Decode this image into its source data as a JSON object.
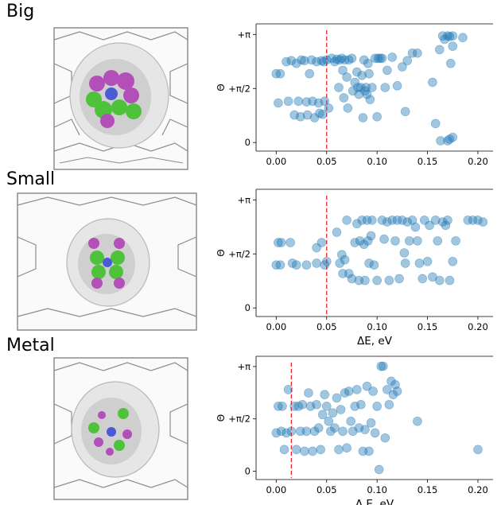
{
  "panels": [
    {
      "label": "Big"
    },
    {
      "label": "Small"
    },
    {
      "label": "Metal"
    }
  ],
  "colors": {
    "point": "#1f77b4",
    "threshold": "#e8262b",
    "tube": "#8c8c8c",
    "shell": "#d4d4d4",
    "atom_green": "#4ec23a",
    "atom_magenta": "#b24fb8",
    "atom_blue": "#4b5bd6"
  },
  "chart_data": [
    {
      "type": "scatter",
      "ylabel": "Θ",
      "xlabel": "",
      "xlim": [
        -0.02,
        0.215
      ],
      "ylim": [
        -0.25,
        3.45
      ],
      "x_ticks": [
        {
          "value": 0.0,
          "label": "0.00"
        },
        {
          "value": 0.05,
          "label": "0.05"
        },
        {
          "value": 0.1,
          "label": "0.10"
        },
        {
          "value": 0.15,
          "label": "0.15"
        },
        {
          "value": 0.2,
          "label": "0.20"
        }
      ],
      "y_ticks": [
        {
          "value": 0,
          "label": "0"
        },
        {
          "value": 1.5708,
          "label": "+π/2"
        },
        {
          "value": 3.1416,
          "label": "+π"
        }
      ],
      "threshold_x": 0.05,
      "points": [
        [
          0.0,
          2.0
        ],
        [
          0.002,
          1.15
        ],
        [
          0.004,
          2.0
        ],
        [
          0.01,
          2.35
        ],
        [
          0.012,
          1.2
        ],
        [
          0.015,
          2.38
        ],
        [
          0.018,
          0.8
        ],
        [
          0.02,
          2.3
        ],
        [
          0.022,
          1.2
        ],
        [
          0.024,
          0.75
        ],
        [
          0.025,
          2.4
        ],
        [
          0.028,
          2.38
        ],
        [
          0.03,
          1.18
        ],
        [
          0.031,
          0.8
        ],
        [
          0.033,
          2.0
        ],
        [
          0.035,
          2.4
        ],
        [
          0.036,
          1.2
        ],
        [
          0.038,
          0.72
        ],
        [
          0.04,
          2.35
        ],
        [
          0.042,
          1.15
        ],
        [
          0.043,
          0.85
        ],
        [
          0.045,
          2.38
        ],
        [
          0.046,
          0.82
        ],
        [
          0.047,
          2.35
        ],
        [
          0.048,
          1.2
        ],
        [
          0.05,
          2.4
        ],
        [
          0.052,
          1.0
        ],
        [
          0.055,
          2.45
        ],
        [
          0.058,
          2.35
        ],
        [
          0.06,
          2.42
        ],
        [
          0.062,
          1.6
        ],
        [
          0.063,
          2.4
        ],
        [
          0.065,
          2.45
        ],
        [
          0.066,
          2.1
        ],
        [
          0.067,
          1.3
        ],
        [
          0.068,
          2.4
        ],
        [
          0.07,
          1.9
        ],
        [
          0.071,
          1.0
        ],
        [
          0.072,
          2.4
        ],
        [
          0.075,
          2.45
        ],
        [
          0.076,
          1.5
        ],
        [
          0.078,
          1.75
        ],
        [
          0.08,
          2.05
        ],
        [
          0.081,
          1.6
        ],
        [
          0.082,
          1.4
        ],
        [
          0.084,
          1.6
        ],
        [
          0.085,
          1.95
        ],
        [
          0.086,
          0.72
        ],
        [
          0.087,
          2.4
        ],
        [
          0.088,
          1.5
        ],
        [
          0.089,
          1.6
        ],
        [
          0.09,
          1.4
        ],
        [
          0.091,
          2.3
        ],
        [
          0.092,
          2.0
        ],
        [
          0.093,
          1.25
        ],
        [
          0.095,
          1.6
        ],
        [
          0.098,
          2.45
        ],
        [
          0.1,
          0.75
        ],
        [
          0.101,
          2.45
        ],
        [
          0.103,
          2.45
        ],
        [
          0.105,
          2.45
        ],
        [
          0.108,
          1.6
        ],
        [
          0.11,
          2.1
        ],
        [
          0.115,
          2.48
        ],
        [
          0.12,
          1.65
        ],
        [
          0.125,
          2.2
        ],
        [
          0.128,
          0.9
        ],
        [
          0.13,
          2.38
        ],
        [
          0.135,
          2.6
        ],
        [
          0.14,
          2.6
        ],
        [
          0.155,
          1.75
        ],
        [
          0.158,
          0.55
        ],
        [
          0.162,
          2.7
        ],
        [
          0.165,
          3.1
        ],
        [
          0.167,
          3.0
        ],
        [
          0.17,
          3.1
        ],
        [
          0.172,
          3.08
        ],
        [
          0.175,
          3.1
        ],
        [
          0.173,
          2.3
        ],
        [
          0.175,
          2.8
        ],
        [
          0.163,
          0.05
        ],
        [
          0.17,
          0.05
        ],
        [
          0.172,
          0.1
        ],
        [
          0.175,
          0.15
        ],
        [
          0.185,
          3.05
        ]
      ]
    },
    {
      "type": "scatter",
      "ylabel": "Θ",
      "xlabel": "ΔE, eV",
      "xlim": [
        -0.02,
        0.215
      ],
      "ylim": [
        -0.25,
        3.45
      ],
      "x_ticks": [
        {
          "value": 0.0,
          "label": "0.00"
        },
        {
          "value": 0.05,
          "label": "0.05"
        },
        {
          "value": 0.1,
          "label": "0.10"
        },
        {
          "value": 0.15,
          "label": "0.15"
        },
        {
          "value": 0.2,
          "label": "0.20"
        }
      ],
      "y_ticks": [
        {
          "value": 0,
          "label": "0"
        },
        {
          "value": 1.5708,
          "label": "+π/2"
        },
        {
          "value": 3.1416,
          "label": "+π"
        }
      ],
      "threshold_x": 0.05,
      "points": [
        [
          0.0,
          1.25
        ],
        [
          0.002,
          1.9
        ],
        [
          0.004,
          1.25
        ],
        [
          0.005,
          1.9
        ],
        [
          0.014,
          1.9
        ],
        [
          0.016,
          1.3
        ],
        [
          0.02,
          1.25
        ],
        [
          0.03,
          1.25
        ],
        [
          0.04,
          1.75
        ],
        [
          0.04,
          1.3
        ],
        [
          0.045,
          1.9
        ],
        [
          0.048,
          1.25
        ],
        [
          0.05,
          1.35
        ],
        [
          0.06,
          2.2
        ],
        [
          0.063,
          1.3
        ],
        [
          0.065,
          1.55
        ],
        [
          0.066,
          1.0
        ],
        [
          0.068,
          1.4
        ],
        [
          0.07,
          2.55
        ],
        [
          0.072,
          1.0
        ],
        [
          0.075,
          0.85
        ],
        [
          0.078,
          1.9
        ],
        [
          0.08,
          2.45
        ],
        [
          0.082,
          0.8
        ],
        [
          0.083,
          1.95
        ],
        [
          0.085,
          2.55
        ],
        [
          0.087,
          1.85
        ],
        [
          0.088,
          0.8
        ],
        [
          0.09,
          2.55
        ],
        [
          0.091,
          1.95
        ],
        [
          0.092,
          1.3
        ],
        [
          0.094,
          2.1
        ],
        [
          0.095,
          2.55
        ],
        [
          0.097,
          1.25
        ],
        [
          0.1,
          0.8
        ],
        [
          0.105,
          2.55
        ],
        [
          0.107,
          2.0
        ],
        [
          0.11,
          2.5
        ],
        [
          0.112,
          0.8
        ],
        [
          0.115,
          2.55
        ],
        [
          0.118,
          1.95
        ],
        [
          0.12,
          2.55
        ],
        [
          0.122,
          0.85
        ],
        [
          0.125,
          2.55
        ],
        [
          0.127,
          1.6
        ],
        [
          0.128,
          1.3
        ],
        [
          0.13,
          2.5
        ],
        [
          0.132,
          1.95
        ],
        [
          0.135,
          2.55
        ],
        [
          0.138,
          2.35
        ],
        [
          0.14,
          1.95
        ],
        [
          0.142,
          1.3
        ],
        [
          0.145,
          0.85
        ],
        [
          0.147,
          2.55
        ],
        [
          0.15,
          1.35
        ],
        [
          0.152,
          2.4
        ],
        [
          0.155,
          0.9
        ],
        [
          0.158,
          2.55
        ],
        [
          0.16,
          1.95
        ],
        [
          0.162,
          0.8
        ],
        [
          0.165,
          2.5
        ],
        [
          0.168,
          2.4
        ],
        [
          0.17,
          2.55
        ],
        [
          0.172,
          0.8
        ],
        [
          0.175,
          1.35
        ],
        [
          0.178,
          1.95
        ],
        [
          0.19,
          2.55
        ],
        [
          0.195,
          2.55
        ],
        [
          0.2,
          2.55
        ],
        [
          0.205,
          2.5
        ]
      ]
    },
    {
      "type": "scatter",
      "ylabel": "Θ",
      "xlabel": "Δ E, eV",
      "xlim": [
        -0.02,
        0.215
      ],
      "ylim": [
        -0.25,
        3.45
      ],
      "x_ticks": [
        {
          "value": 0.0,
          "label": "0.00"
        },
        {
          "value": 0.05,
          "label": "0.05"
        },
        {
          "value": 0.1,
          "label": "0.10"
        },
        {
          "value": 0.15,
          "label": "0.15"
        },
        {
          "value": 0.2,
          "label": "0.20"
        }
      ],
      "y_ticks": [
        {
          "value": 0,
          "label": "0"
        },
        {
          "value": 1.5708,
          "label": "+π/2"
        },
        {
          "value": 3.1416,
          "label": "+π"
        }
      ],
      "threshold_x": 0.015,
      "points": [
        [
          0.0,
          1.15
        ],
        [
          0.002,
          1.95
        ],
        [
          0.005,
          1.2
        ],
        [
          0.006,
          1.95
        ],
        [
          0.008,
          0.65
        ],
        [
          0.01,
          1.15
        ],
        [
          0.012,
          2.45
        ],
        [
          0.015,
          1.2
        ],
        [
          0.018,
          1.95
        ],
        [
          0.02,
          0.65
        ],
        [
          0.022,
          1.95
        ],
        [
          0.024,
          1.2
        ],
        [
          0.026,
          2.0
        ],
        [
          0.028,
          0.6
        ],
        [
          0.03,
          1.2
        ],
        [
          0.032,
          2.35
        ],
        [
          0.034,
          1.95
        ],
        [
          0.036,
          0.6
        ],
        [
          0.038,
          1.2
        ],
        [
          0.04,
          2.0
        ],
        [
          0.042,
          1.3
        ],
        [
          0.044,
          0.65
        ],
        [
          0.046,
          1.7
        ],
        [
          0.048,
          2.3
        ],
        [
          0.05,
          1.95
        ],
        [
          0.052,
          1.5
        ],
        [
          0.054,
          1.2
        ],
        [
          0.056,
          1.75
        ],
        [
          0.058,
          1.3
        ],
        [
          0.06,
          2.2
        ],
        [
          0.062,
          0.65
        ],
        [
          0.064,
          1.85
        ],
        [
          0.066,
          1.2
        ],
        [
          0.068,
          2.35
        ],
        [
          0.07,
          0.7
        ],
        [
          0.072,
          2.4
        ],
        [
          0.074,
          1.5
        ],
        [
          0.076,
          1.2
        ],
        [
          0.078,
          1.95
        ],
        [
          0.08,
          2.45
        ],
        [
          0.082,
          1.3
        ],
        [
          0.084,
          2.0
        ],
        [
          0.086,
          0.6
        ],
        [
          0.088,
          1.25
        ],
        [
          0.09,
          2.55
        ],
        [
          0.092,
          0.6
        ],
        [
          0.094,
          1.45
        ],
        [
          0.096,
          2.4
        ],
        [
          0.098,
          1.15
        ],
        [
          0.1,
          1.95
        ],
        [
          0.102,
          0.05
        ],
        [
          0.104,
          3.15
        ],
        [
          0.106,
          3.15
        ],
        [
          0.108,
          1.0
        ],
        [
          0.11,
          2.45
        ],
        [
          0.112,
          2.0
        ],
        [
          0.114,
          2.7
        ],
        [
          0.116,
          2.3
        ],
        [
          0.118,
          2.6
        ],
        [
          0.12,
          2.4
        ],
        [
          0.14,
          1.5
        ],
        [
          0.2,
          0.65
        ]
      ]
    }
  ]
}
